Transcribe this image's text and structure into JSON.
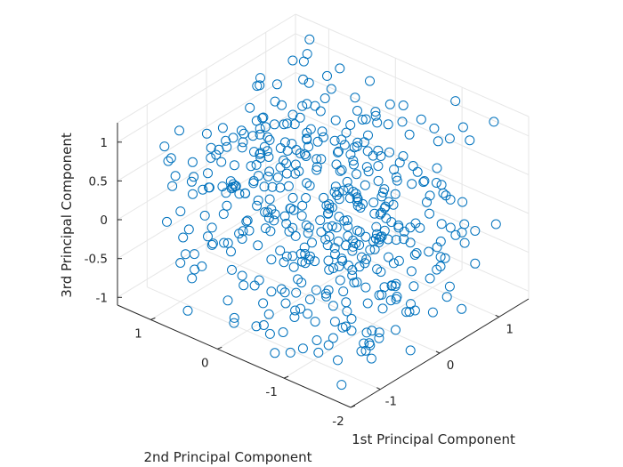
{
  "chart_data": {
    "type": "scatter3d",
    "title": "",
    "xlabel": "1st Principal Component",
    "ylabel": "2nd Principal Component",
    "zlabel": "3rd Principal Component",
    "xlim": [
      -1.5,
      1.5
    ],
    "ylim": [
      -2,
      1.5
    ],
    "zlim": [
      -1.1,
      1.25
    ],
    "x_ticks": [
      "-1",
      "0",
      "1"
    ],
    "x_tick_values": [
      -1,
      0,
      1
    ],
    "y_ticks": [
      "-2",
      "-1",
      "0",
      "1"
    ],
    "y_tick_values": [
      -2,
      -1,
      0,
      1
    ],
    "z_ticks": [
      "-1",
      "-0.5",
      "0",
      "0.5",
      "1"
    ],
    "z_tick_values": [
      -1,
      -0.5,
      0,
      0.5,
      1
    ],
    "grid": true,
    "marker": "circle-open",
    "marker_color": "#0072bd",
    "point_count": 480,
    "points_note": "Point coordinates are approximate; the cloud fills the axis box roughly uniformly."
  }
}
